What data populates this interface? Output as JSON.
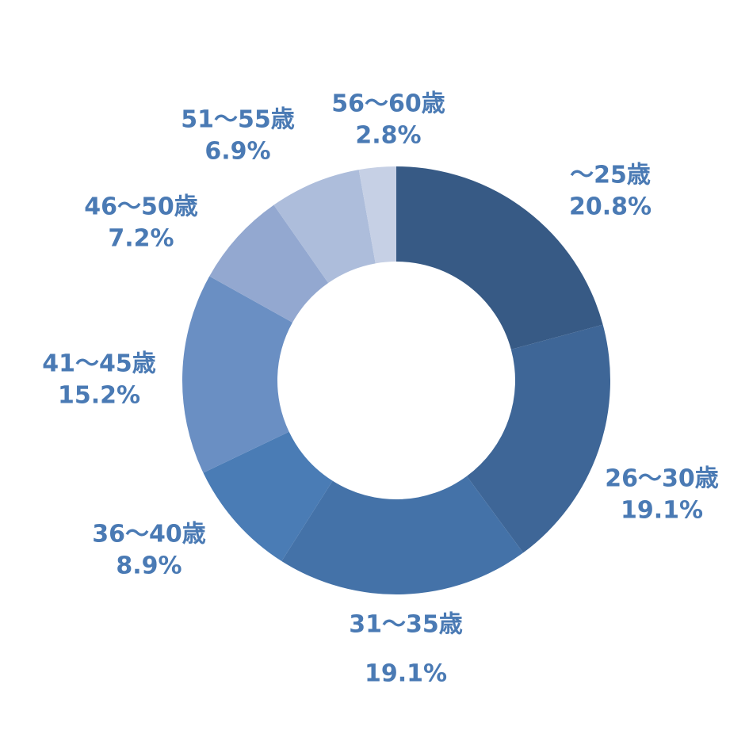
{
  "chart_data": {
    "type": "donut",
    "categories": [
      "～25歳",
      "26～30歳",
      "31～35歳",
      "36～40歳",
      "41～45歳",
      "46～50歳",
      "51～55歳",
      "56～60歳"
    ],
    "values": [
      20.8,
      19.1,
      19.1,
      8.9,
      15.2,
      7.2,
      6.9,
      2.8
    ],
    "value_labels": [
      "20.8%",
      "19.1%",
      "19.1%",
      "8.9%",
      "15.2%",
      "7.2%",
      "6.9%",
      "2.8%"
    ],
    "colors": [
      "#375a85",
      "#3e6697",
      "#4472a8",
      "#4a7cb5",
      "#6a8fc3",
      "#93a8d0",
      "#adbddb",
      "#c6d0e5"
    ]
  }
}
